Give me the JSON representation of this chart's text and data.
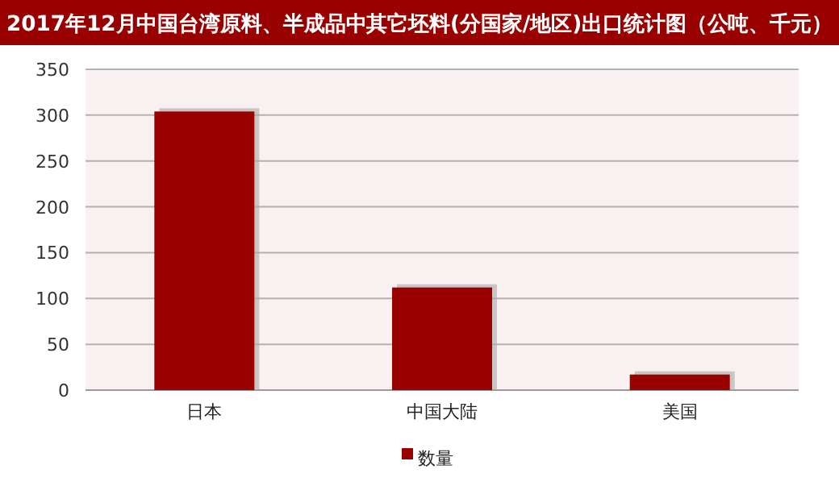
{
  "chart_data": {
    "type": "bar",
    "title": "2017年12月中国台湾原料、半成品中其它坯料(分国家/地区)出口统计图（公吨、千元）",
    "categories": [
      "日本",
      "中国大陆",
      "美国"
    ],
    "series": [
      {
        "name": "数量",
        "color": "#990000",
        "values": [
          304,
          112,
          17
        ]
      }
    ],
    "ylim": [
      0,
      350
    ],
    "yticks": [
      0,
      50,
      100,
      150,
      200,
      250,
      300,
      350
    ],
    "grid": "y",
    "legend": "bottom"
  }
}
